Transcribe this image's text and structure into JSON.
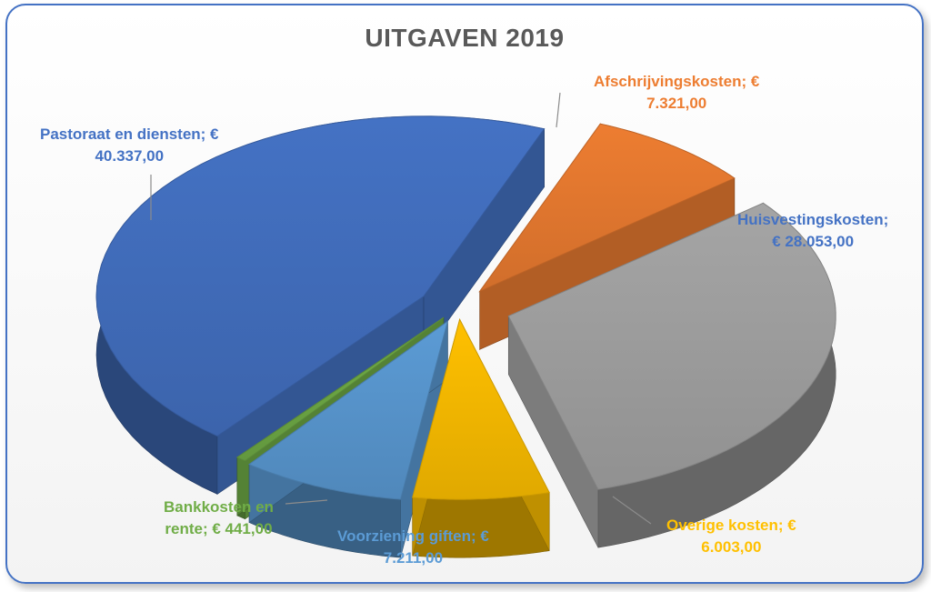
{
  "chart_data": {
    "type": "pie",
    "title": "UITGAVEN 2019",
    "slices": [
      {
        "name": "Afschrijvingskosten",
        "value": 7321.0,
        "label_line1": "Afschrijvingskosten; €",
        "label_line2": "7.321,00",
        "color": "#ed7d31",
        "label_color": "#ed7d31"
      },
      {
        "name": "Huisvestingskosten",
        "value": 28053.0,
        "label_line1": "Huisvestingskosten;",
        "label_line2": "€ 28.053,00",
        "color": "#a5a5a5",
        "label_color": "#4472c4"
      },
      {
        "name": "Overige kosten",
        "value": 6003.0,
        "label_line1": "Overige kosten; €",
        "label_line2": "6.003,00",
        "color": "#ffc000",
        "label_color": "#ffc000"
      },
      {
        "name": "Voorziening giften",
        "value": 7211.0,
        "label_line1": "Voorziening giften; €",
        "label_line2": "7.211,00",
        "color": "#5b9bd5",
        "label_color": "#5b9bd5"
      },
      {
        "name": "Bankkosten en rente",
        "value": 441.0,
        "label_line1": "Bankkosten en",
        "label_line2": "rente; € 441,00",
        "color": "#70ad47",
        "label_color": "#70ad47"
      },
      {
        "name": "Pastoraat en diensten",
        "value": 40337.0,
        "label_line1": "Pastoraat en diensten; €",
        "label_line2": "40.337,00",
        "color": "#4472c4",
        "label_color": "#4472c4"
      }
    ],
    "legend": "none",
    "style": "3d-exploded-pie"
  }
}
